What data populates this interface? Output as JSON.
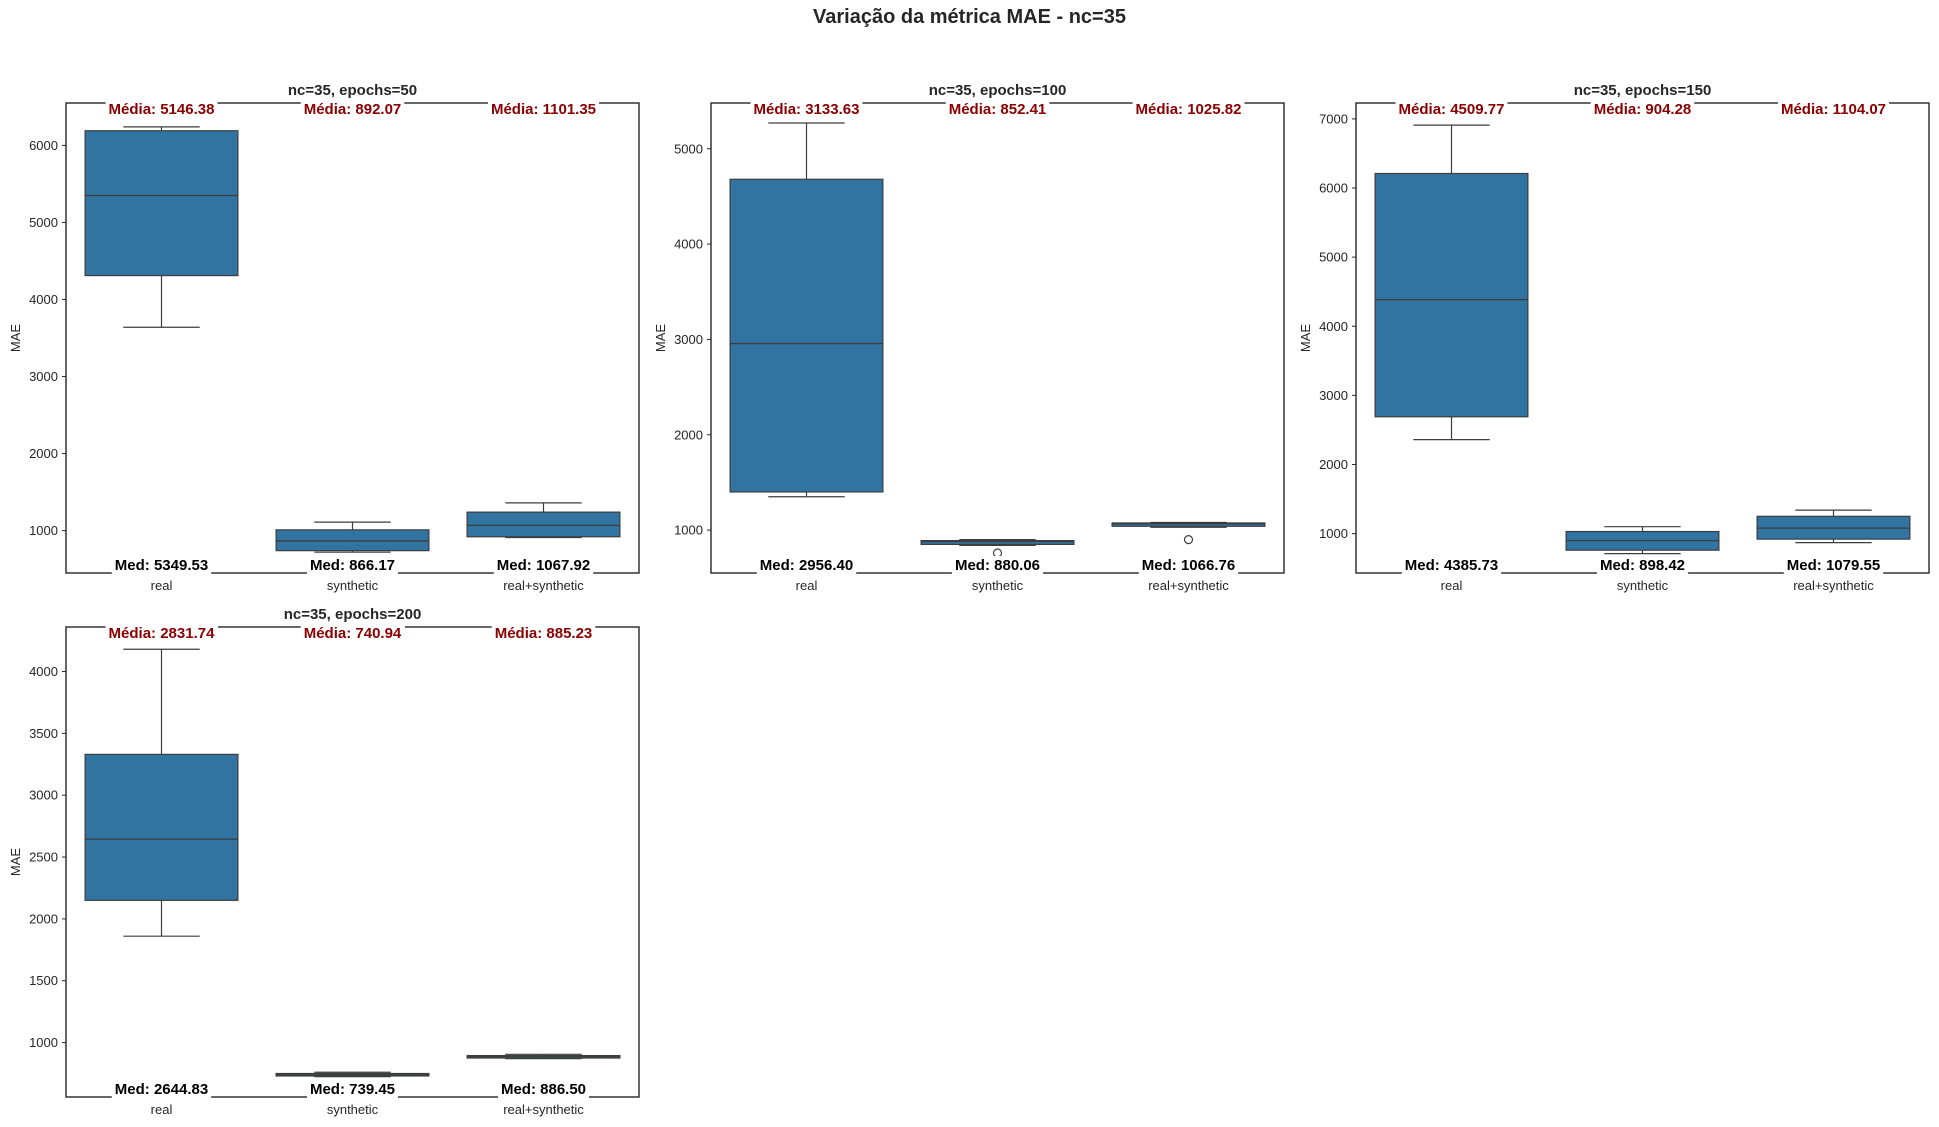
{
  "figure": {
    "title": "Variação da métrica MAE - nc=35"
  },
  "chart_data": [
    {
      "type": "box",
      "title": "nc=35, epochs=50",
      "xlabel": "",
      "ylabel": "MAE",
      "ylim": [
        450,
        6550
      ],
      "yticks": [
        1000,
        2000,
        3000,
        4000,
        5000,
        6000
      ],
      "categories": [
        "real",
        "synthetic",
        "real+synthetic"
      ],
      "boxes": [
        {
          "whislo": 3640,
          "q1": 4310,
          "med": 5349.53,
          "q3": 6190,
          "whishi": 6240,
          "fliers": []
        },
        {
          "whislo": 720,
          "q1": 740,
          "med": 866.17,
          "q3": 1010,
          "whishi": 1110,
          "fliers": []
        },
        {
          "whislo": 910,
          "q1": 920,
          "med": 1067.92,
          "q3": 1240,
          "whishi": 1360,
          "fliers": []
        }
      ],
      "mean_labels": [
        "Média: 5146.38",
        "Média: 892.07",
        "Média: 1101.35"
      ],
      "median_labels": [
        "Med: 5349.53",
        "Med: 866.17",
        "Med: 1067.92"
      ]
    },
    {
      "type": "box",
      "title": "nc=35, epochs=100",
      "xlabel": "",
      "ylabel": "MAE",
      "ylim": [
        550,
        5480
      ],
      "yticks": [
        1000,
        2000,
        3000,
        4000,
        5000
      ],
      "categories": [
        "real",
        "synthetic",
        "real+synthetic"
      ],
      "boxes": [
        {
          "whislo": 1350,
          "q1": 1400,
          "med": 2956.4,
          "q3": 4680,
          "whishi": 5270,
          "fliers": []
        },
        {
          "whislo": 840,
          "q1": 850,
          "med": 880.06,
          "q3": 890,
          "whishi": 900,
          "fliers": [
            760
          ]
        },
        {
          "whislo": 1030,
          "q1": 1040,
          "med": 1066.76,
          "q3": 1075,
          "whishi": 1080,
          "fliers": [
            900
          ]
        }
      ],
      "mean_labels": [
        "Média: 3133.63",
        "Média: 852.41",
        "Média: 1025.82"
      ],
      "median_labels": [
        "Med: 2956.40",
        "Med: 880.06",
        "Med: 1066.76"
      ]
    },
    {
      "type": "box",
      "title": "nc=35, epochs=150",
      "xlabel": "",
      "ylabel": "MAE",
      "ylim": [
        430,
        7230
      ],
      "yticks": [
        1000,
        2000,
        3000,
        4000,
        5000,
        6000,
        7000
      ],
      "categories": [
        "real",
        "synthetic",
        "real+synthetic"
      ],
      "boxes": [
        {
          "whislo": 2360,
          "q1": 2690,
          "med": 4385.73,
          "q3": 6210,
          "whishi": 6910,
          "fliers": []
        },
        {
          "whislo": 710,
          "q1": 760,
          "med": 898.42,
          "q3": 1030,
          "whishi": 1100,
          "fliers": []
        },
        {
          "whislo": 870,
          "q1": 920,
          "med": 1079.55,
          "q3": 1250,
          "whishi": 1340,
          "fliers": []
        }
      ],
      "mean_labels": [
        "Média: 4509.77",
        "Média: 904.28",
        "Média: 1104.07"
      ],
      "median_labels": [
        "Med: 4385.73",
        "Med: 898.42",
        "Med: 1079.55"
      ]
    },
    {
      "type": "box",
      "title": "nc=35, epochs=200",
      "xlabel": "",
      "ylabel": "MAE",
      "ylim": [
        560,
        4360
      ],
      "yticks": [
        1000,
        1500,
        2000,
        2500,
        3000,
        3500,
        4000
      ],
      "categories": [
        "real",
        "synthetic",
        "real+synthetic"
      ],
      "boxes": [
        {
          "whislo": 1860,
          "q1": 2150,
          "med": 2644.83,
          "q3": 3330,
          "whishi": 4180,
          "fliers": []
        },
        {
          "whislo": 725,
          "q1": 730,
          "med": 739.45,
          "q3": 750,
          "whishi": 760,
          "fliers": []
        },
        {
          "whislo": 870,
          "q1": 875,
          "med": 886.5,
          "q3": 895,
          "whishi": 905,
          "fliers": []
        }
      ],
      "mean_labels": [
        "Média: 2831.74",
        "Média: 740.94",
        "Média: 885.23"
      ],
      "median_labels": [
        "Med: 2644.83",
        "Med: 739.45",
        "Med: 886.50"
      ]
    }
  ],
  "colors": {
    "box_fill": "#3274a1",
    "box_edge": "#3d3d3d",
    "mean_text": "#8b0000",
    "median_text": "#000000",
    "axis": "#262626"
  }
}
